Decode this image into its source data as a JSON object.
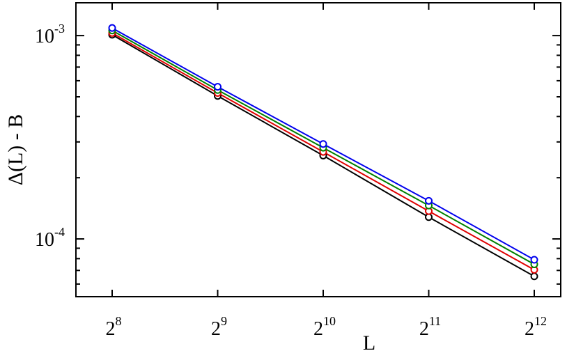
{
  "chart_data": {
    "type": "line",
    "title": "",
    "xlabel": "L",
    "ylabel": "Δ(L) - B",
    "xscale": "log2",
    "yscale": "log10",
    "x": [
      256,
      512,
      1024,
      2048,
      4096
    ],
    "x_tick_labels": [
      {
        "base": "2",
        "exp": "8"
      },
      {
        "base": "2",
        "exp": "9"
      },
      {
        "base": "2",
        "exp": "10"
      },
      {
        "base": "2",
        "exp": "11"
      },
      {
        "base": "2",
        "exp": "12"
      }
    ],
    "y_tick_labels": [
      {
        "value": 0.001,
        "base": "10",
        "exp": "-3"
      },
      {
        "value": 0.0001,
        "base": "10",
        "exp": "-4"
      }
    ],
    "xlim": [
      256,
      4096
    ],
    "ylim": [
      5.2e-05,
      0.00145
    ],
    "legend": "none",
    "grid": false,
    "marker": "open-circle",
    "series": [
      {
        "color": "#000000",
        "values": [
          0.00101,
          0.000505,
          0.000257,
          0.000128,
          6.55e-05
        ]
      },
      {
        "color": "#e00000",
        "values": [
          0.00103,
          0.000522,
          0.000268,
          0.000137,
          7.05e-05
        ]
      },
      {
        "color": "#008000",
        "values": [
          0.00106,
          0.00054,
          0.000281,
          0.000146,
          7.5e-05
        ]
      },
      {
        "color": "#0000ee",
        "values": [
          0.00109,
          0.00056,
          0.000293,
          0.000154,
          7.9e-05
        ]
      }
    ]
  }
}
